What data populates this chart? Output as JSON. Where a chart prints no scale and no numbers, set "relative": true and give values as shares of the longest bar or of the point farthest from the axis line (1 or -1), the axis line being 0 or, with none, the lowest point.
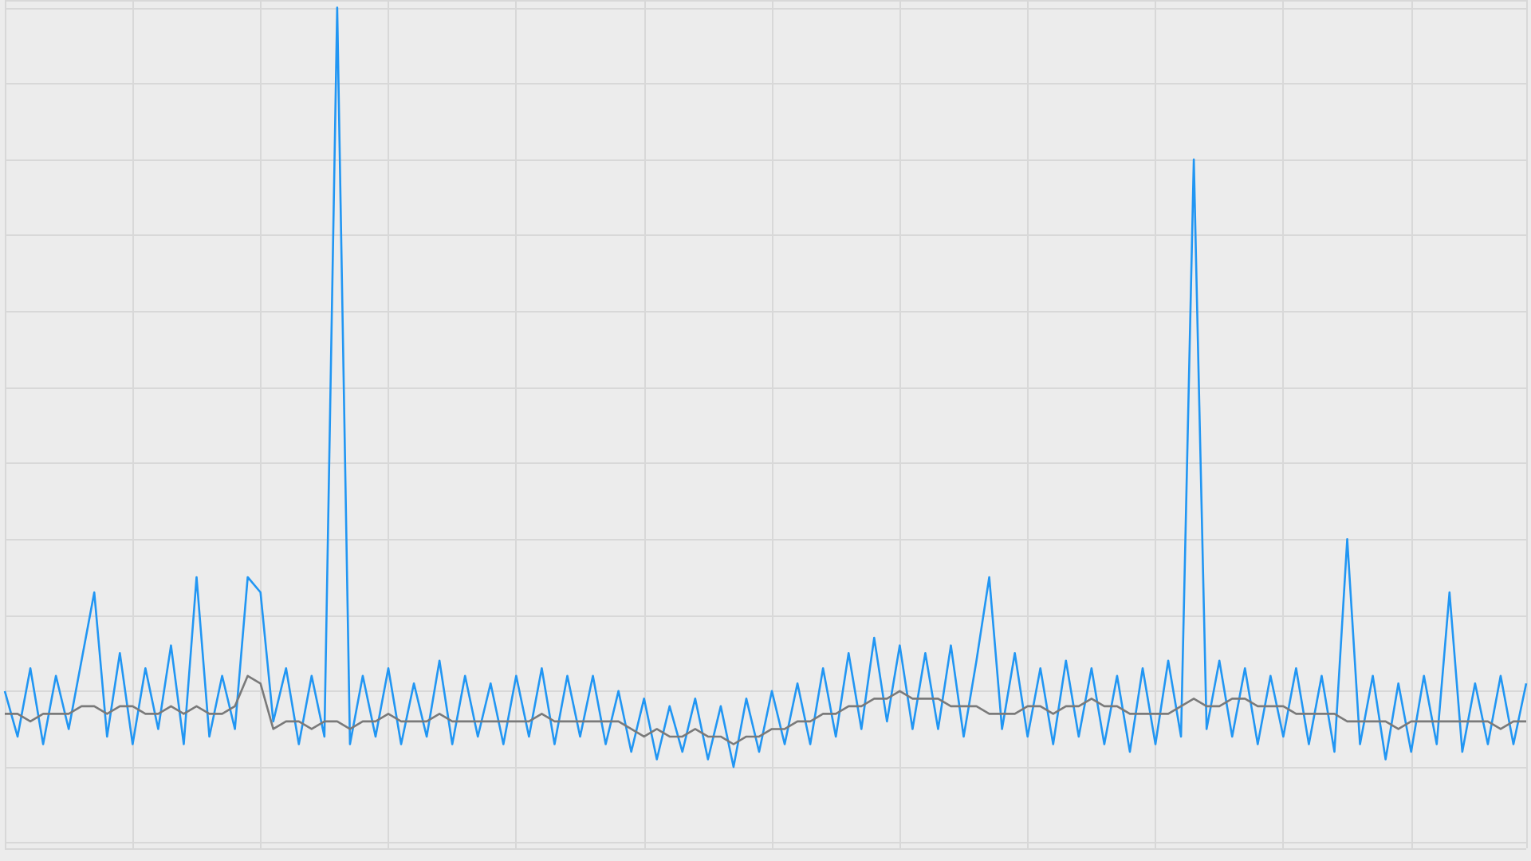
{
  "chart_data": {
    "type": "line",
    "relative": true,
    "grid": true,
    "line_style": "solid",
    "categories": [
      null,
      null,
      null,
      null,
      null,
      null,
      null,
      null,
      null,
      null,
      null,
      null,
      null,
      null,
      null,
      null,
      null,
      null,
      null,
      null,
      null,
      null,
      null,
      null,
      null,
      null,
      null,
      null,
      null,
      null,
      null,
      null,
      null,
      null,
      null,
      null,
      null,
      null,
      null,
      null,
      null,
      null,
      null,
      null,
      null,
      null,
      null,
      null,
      null,
      null,
      null,
      null,
      null,
      null,
      null,
      null,
      null,
      null,
      null,
      null,
      null,
      null,
      null,
      null,
      null,
      null,
      null,
      null,
      null,
      null,
      null,
      null,
      null,
      null,
      null,
      null,
      null,
      null,
      null,
      null,
      null,
      null,
      null,
      null,
      null,
      null,
      null,
      null,
      null,
      null,
      null,
      null,
      null,
      null,
      null,
      null,
      null,
      null,
      null,
      null,
      null,
      null,
      null,
      null,
      null,
      null,
      null,
      null,
      null,
      null,
      null,
      null,
      null,
      null,
      null,
      null,
      null,
      null,
      null,
      null
    ],
    "series": [
      {
        "color": "#2196f3",
        "values": [
          0.1,
          0.04,
          0.13,
          0.03,
          0.12,
          0.05,
          0.14,
          0.23,
          0.04,
          0.15,
          0.03,
          0.13,
          0.05,
          0.16,
          0.03,
          0.25,
          0.04,
          0.12,
          0.05,
          0.25,
          0.23,
          0.06,
          0.13,
          0.03,
          0.12,
          0.04,
          1.0,
          0.03,
          0.12,
          0.04,
          0.13,
          0.03,
          0.11,
          0.04,
          0.14,
          0.03,
          0.12,
          0.04,
          0.11,
          0.03,
          0.12,
          0.04,
          0.13,
          0.03,
          0.12,
          0.04,
          0.12,
          0.03,
          0.1,
          0.02,
          0.09,
          0.01,
          0.08,
          0.02,
          0.09,
          0.01,
          0.08,
          0.0,
          0.09,
          0.02,
          0.1,
          0.03,
          0.11,
          0.03,
          0.13,
          0.04,
          0.15,
          0.05,
          0.17,
          0.06,
          0.16,
          0.05,
          0.15,
          0.05,
          0.16,
          0.04,
          0.14,
          0.25,
          0.05,
          0.15,
          0.04,
          0.13,
          0.03,
          0.14,
          0.04,
          0.13,
          0.03,
          0.12,
          0.02,
          0.13,
          0.03,
          0.14,
          0.04,
          0.8,
          0.05,
          0.14,
          0.04,
          0.13,
          0.03,
          0.12,
          0.04,
          0.13,
          0.03,
          0.12,
          0.02,
          0.3,
          0.03,
          0.12,
          0.01,
          0.11,
          0.02,
          0.12,
          0.03,
          0.23,
          0.02,
          0.11,
          0.03,
          0.12,
          0.03,
          0.11
        ]
      },
      {
        "color": "#7a7a7a",
        "values": [
          0.07,
          0.07,
          0.06,
          0.07,
          0.07,
          0.07,
          0.08,
          0.08,
          0.07,
          0.08,
          0.08,
          0.07,
          0.07,
          0.08,
          0.07,
          0.08,
          0.07,
          0.07,
          0.08,
          0.12,
          0.11,
          0.05,
          0.06,
          0.06,
          0.05,
          0.06,
          0.06,
          0.05,
          0.06,
          0.06,
          0.07,
          0.06,
          0.06,
          0.06,
          0.07,
          0.06,
          0.06,
          0.06,
          0.06,
          0.06,
          0.06,
          0.06,
          0.07,
          0.06,
          0.06,
          0.06,
          0.06,
          0.06,
          0.06,
          0.05,
          0.04,
          0.05,
          0.04,
          0.04,
          0.05,
          0.04,
          0.04,
          0.03,
          0.04,
          0.04,
          0.05,
          0.05,
          0.06,
          0.06,
          0.07,
          0.07,
          0.08,
          0.08,
          0.09,
          0.09,
          0.1,
          0.09,
          0.09,
          0.09,
          0.08,
          0.08,
          0.08,
          0.07,
          0.07,
          0.07,
          0.08,
          0.08,
          0.07,
          0.08,
          0.08,
          0.09,
          0.08,
          0.08,
          0.07,
          0.07,
          0.07,
          0.07,
          0.08,
          0.09,
          0.08,
          0.08,
          0.09,
          0.09,
          0.08,
          0.08,
          0.08,
          0.07,
          0.07,
          0.07,
          0.07,
          0.06,
          0.06,
          0.06,
          0.06,
          0.05,
          0.06,
          0.06,
          0.06,
          0.06,
          0.06,
          0.06,
          0.06,
          0.05,
          0.06,
          0.06
        ]
      }
    ]
  }
}
